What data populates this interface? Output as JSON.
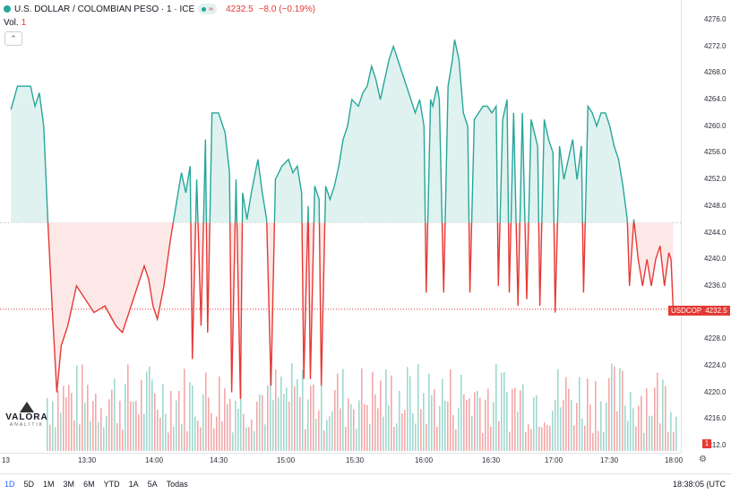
{
  "legend": {
    "title": "U.S. DOLLAR / COLOMBIAN PESO · 1 · ICE",
    "pill_icon": "eye-icon",
    "wave_glyph": "≈",
    "last_value": "4232.5",
    "change": "−8.0 (−0.19%)"
  },
  "volume_label": {
    "label": "Vol.",
    "value": "1"
  },
  "collapse_glyph": "⌃",
  "price_axis": [
    "4276.0",
    "4272.0",
    "4268.0",
    "4264.0",
    "4260.0",
    "4256.0",
    "4252.0",
    "4248.0",
    "4244.0",
    "4240.0",
    "4236.0",
    "4232.0",
    "4228.0",
    "4224.0",
    "4220.0",
    "4216.0",
    "4212.0"
  ],
  "time_axis": [
    "13",
    "13:30",
    "14:00",
    "14:30",
    "15:00",
    "15:30",
    "16:00",
    "16:30",
    "17:00",
    "17:30",
    "18:00"
  ],
  "last_price_badge": {
    "symbol": "USDCOP",
    "price": "4232.5"
  },
  "volume_badge": "1",
  "logo": {
    "name": "VALORA",
    "sub": "ANALITIK"
  },
  "ranges": [
    "1D",
    "5D",
    "1M",
    "3M",
    "6M",
    "YTD",
    "1A",
    "5A",
    "Todas"
  ],
  "active_range": "1D",
  "clock": "18:38:05 (UTC",
  "settings_icon": "gear-icon",
  "colors": {
    "up": "#26a69a",
    "down": "#e53935",
    "up_fill": "#e0f2ef",
    "down_fill": "#fde8e8"
  },
  "chart_data": {
    "type": "area",
    "baseline": 4245.5,
    "last_price": 4232.5,
    "ylim": [
      4210,
      4278
    ],
    "x_range": [
      "12:57",
      "18:00"
    ],
    "series": [
      {
        "name": "USDCOP",
        "points": [
          [
            "12:57",
            4262.5
          ],
          [
            "13:00",
            4266
          ],
          [
            "13:06",
            4266
          ],
          [
            "13:08",
            4263
          ],
          [
            "13:10",
            4265
          ],
          [
            "13:12",
            4260
          ],
          [
            "13:14",
            4245
          ],
          [
            "13:16",
            4232
          ],
          [
            "13:18",
            4220
          ],
          [
            "13:20",
            4227
          ],
          [
            "13:23",
            4230
          ],
          [
            "13:27",
            4236
          ],
          [
            "13:31",
            4234
          ],
          [
            "13:35",
            4232
          ],
          [
            "13:40",
            4233
          ],
          [
            "13:45",
            4230
          ],
          [
            "13:48",
            4229
          ],
          [
            "13:52",
            4233
          ],
          [
            "13:55",
            4236
          ],
          [
            "13:58",
            4239
          ],
          [
            "14:00",
            4237
          ],
          [
            "14:02",
            4233
          ],
          [
            "14:04",
            4231
          ],
          [
            "14:07",
            4236
          ],
          [
            "14:10",
            4243
          ],
          [
            "14:13",
            4249
          ],
          [
            "14:15",
            4253
          ],
          [
            "14:17",
            4250
          ],
          [
            "14:19",
            4254
          ],
          [
            "14:20",
            4225
          ],
          [
            "14:22",
            4252
          ],
          [
            "14:24",
            4230
          ],
          [
            "14:26",
            4258
          ],
          [
            "14:27",
            4229
          ],
          [
            "14:29",
            4262
          ],
          [
            "14:32",
            4262
          ],
          [
            "14:35",
            4259
          ],
          [
            "14:37",
            4253
          ],
          [
            "14:38",
            4220
          ],
          [
            "14:40",
            4252
          ],
          [
            "14:42",
            4219
          ],
          [
            "14:43",
            4250
          ],
          [
            "14:45",
            4246
          ],
          [
            "14:47",
            4250
          ],
          [
            "14:50",
            4255
          ],
          [
            "14:52",
            4250
          ],
          [
            "14:54",
            4246
          ],
          [
            "14:56",
            4221
          ],
          [
            "14:58",
            4252
          ],
          [
            "15:01",
            4254
          ],
          [
            "15:04",
            4255
          ],
          [
            "15:06",
            4253
          ],
          [
            "15:08",
            4254
          ],
          [
            "15:10",
            4250
          ],
          [
            "15:11",
            4222
          ],
          [
            "15:13",
            4248
          ],
          [
            "15:14",
            4222
          ],
          [
            "15:16",
            4251
          ],
          [
            "15:18",
            4249
          ],
          [
            "15:19",
            4221
          ],
          [
            "15:21",
            4251
          ],
          [
            "15:23",
            4249
          ],
          [
            "15:25",
            4251
          ],
          [
            "15:27",
            4254
          ],
          [
            "15:29",
            4258
          ],
          [
            "15:31",
            4260
          ],
          [
            "15:33",
            4264
          ],
          [
            "15:36",
            4263
          ],
          [
            "15:38",
            4265
          ],
          [
            "15:40",
            4266
          ],
          [
            "15:42",
            4269
          ],
          [
            "15:44",
            4267
          ],
          [
            "15:46",
            4264
          ],
          [
            "15:48",
            4267
          ],
          [
            "15:50",
            4270
          ],
          [
            "15:52",
            4272
          ],
          [
            "15:54",
            4270
          ],
          [
            "15:56",
            4268
          ],
          [
            "15:58",
            4266
          ],
          [
            "16:00",
            4264
          ],
          [
            "16:02",
            4262
          ],
          [
            "16:04",
            4264
          ],
          [
            "16:06",
            4260
          ],
          [
            "16:07",
            4235
          ],
          [
            "16:09",
            4264
          ],
          [
            "16:10",
            4263
          ],
          [
            "16:12",
            4266
          ],
          [
            "16:13",
            4264
          ],
          [
            "16:15",
            4235
          ],
          [
            "16:17",
            4266
          ],
          [
            "16:19",
            4270
          ],
          [
            "16:20",
            4273
          ],
          [
            "16:22",
            4270
          ],
          [
            "16:24",
            4262
          ],
          [
            "16:26",
            4260
          ],
          [
            "16:27",
            4235
          ],
          [
            "16:29",
            4261
          ],
          [
            "16:31",
            4262
          ],
          [
            "16:33",
            4263
          ],
          [
            "16:35",
            4263
          ],
          [
            "16:37",
            4262
          ],
          [
            "16:39",
            4263
          ],
          [
            "16:40",
            4236
          ],
          [
            "16:42",
            4261
          ],
          [
            "16:44",
            4264
          ],
          [
            "16:45",
            4235
          ],
          [
            "16:47",
            4262
          ],
          [
            "16:49",
            4233
          ],
          [
            "16:51",
            4262
          ],
          [
            "16:53",
            4234
          ],
          [
            "16:55",
            4261
          ],
          [
            "16:58",
            4257
          ],
          [
            "16:59",
            4233
          ],
          [
            "17:01",
            4261
          ],
          [
            "17:03",
            4258
          ],
          [
            "17:05",
            4256
          ],
          [
            "17:06",
            4232
          ],
          [
            "17:08",
            4257
          ],
          [
            "17:10",
            4252
          ],
          [
            "17:12",
            4255
          ],
          [
            "17:14",
            4258
          ],
          [
            "17:16",
            4252
          ],
          [
            "17:18",
            4257
          ],
          [
            "17:19",
            4235
          ],
          [
            "17:21",
            4263
          ],
          [
            "17:23",
            4262
          ],
          [
            "17:25",
            4260
          ],
          [
            "17:27",
            4262
          ],
          [
            "17:29",
            4262
          ],
          [
            "17:31",
            4260
          ],
          [
            "17:33",
            4257
          ],
          [
            "17:35",
            4255
          ],
          [
            "17:37",
            4251
          ],
          [
            "17:39",
            4246
          ],
          [
            "17:40",
            4236
          ],
          [
            "17:42",
            4246
          ],
          [
            "17:44",
            4240
          ],
          [
            "17:46",
            4236
          ],
          [
            "17:48",
            4240
          ],
          [
            "17:50",
            4236
          ],
          [
            "17:52",
            4240
          ],
          [
            "17:54",
            4242
          ],
          [
            "17:56",
            4236
          ],
          [
            "17:58",
            4241
          ],
          [
            "17:59",
            4240
          ],
          [
            "18:00",
            4232.5
          ]
        ]
      }
    ]
  }
}
